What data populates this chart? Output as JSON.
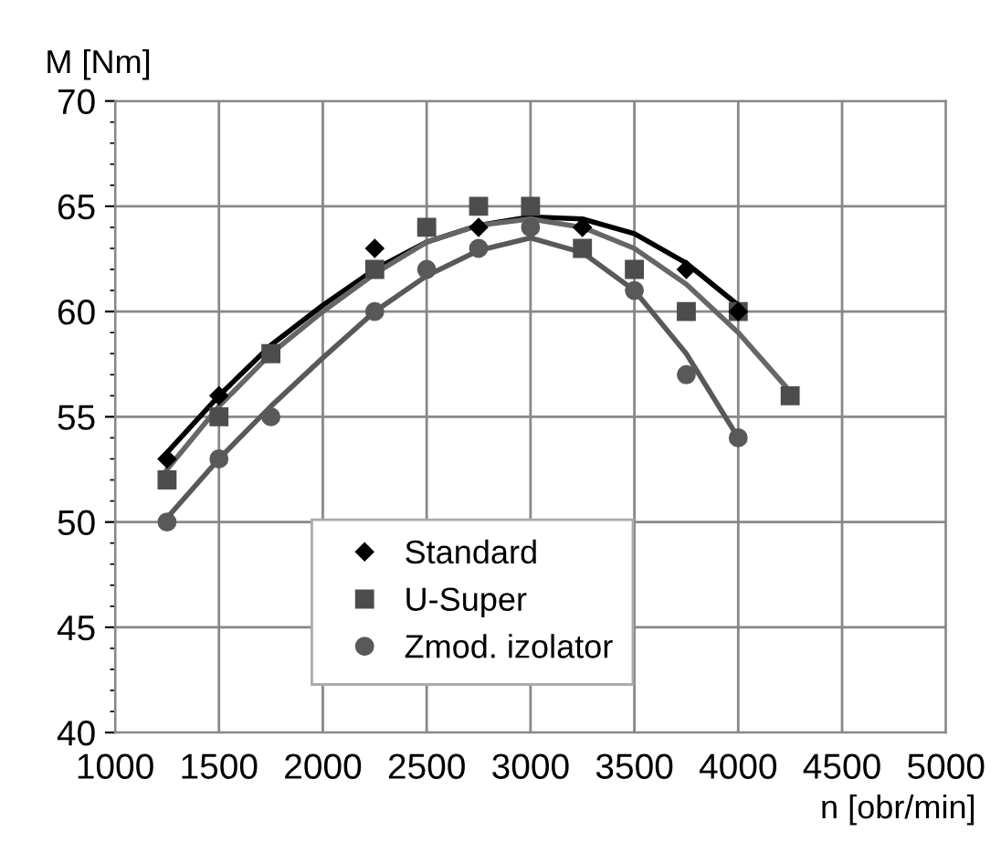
{
  "chart_data": {
    "type": "scatter",
    "xlabel": "n [obr/min]",
    "ylabel": "M [Nm]",
    "xlim": [
      1000,
      5000
    ],
    "xticks": [
      1000,
      1500,
      2000,
      2500,
      3000,
      3500,
      4000,
      4500,
      5000
    ],
    "ylim": [
      40,
      70
    ],
    "yticks": [
      40,
      45,
      50,
      55,
      60,
      65,
      70
    ],
    "grid": true,
    "legend": "bottom",
    "series": [
      {
        "name": "Standard",
        "color": "#000000",
        "marker": "diamond",
        "x": [
          1250,
          1500,
          2250,
          2750,
          3250,
          3750,
          4000
        ],
        "values": [
          53,
          56,
          63,
          64,
          64,
          62,
          60
        ]
      },
      {
        "name": "U-Super",
        "color": "#4d4d4d",
        "marker": "square",
        "x": [
          1250,
          1500,
          1750,
          2250,
          2500,
          2750,
          3000,
          3250,
          3500,
          3750,
          4000,
          4250
        ],
        "values": [
          52,
          55,
          58,
          62,
          64,
          65,
          65,
          63,
          62,
          60,
          60,
          56
        ]
      },
      {
        "name": "Zmod. izolator",
        "color": "#595959",
        "marker": "circle",
        "x": [
          1250,
          1500,
          1750,
          2250,
          2500,
          2750,
          3000,
          3500,
          3750,
          4000
        ],
        "values": [
          50,
          53,
          55,
          60,
          62,
          63,
          64,
          61,
          57,
          54
        ]
      },
      {
        "type": "line",
        "color": "#000000",
        "x": [
          1250,
          1500,
          1750,
          2000,
          2250,
          2500,
          2750,
          3000,
          3250,
          3500,
          3750,
          4000
        ],
        "values": [
          53.3,
          56,
          58.4,
          60.3,
          62,
          63.3,
          64.1,
          64.5,
          64.4,
          63.7,
          62.3,
          60.3
        ]
      },
      {
        "type": "line",
        "color": "#666666",
        "x": [
          1250,
          1500,
          1750,
          2000,
          2250,
          2500,
          2750,
          3000,
          3250,
          3500,
          3750,
          4000,
          4250
        ],
        "values": [
          52.5,
          55.5,
          58,
          60,
          61.8,
          63.3,
          64.1,
          64.4,
          64,
          63,
          61.3,
          59,
          56.2
        ]
      },
      {
        "type": "line",
        "color": "#595959",
        "x": [
          1250,
          1500,
          1750,
          2000,
          2250,
          2500,
          2750,
          3000,
          3250,
          3500,
          3750,
          4000
        ],
        "values": [
          50.2,
          53,
          55.5,
          57.8,
          60,
          61.7,
          62.9,
          63.5,
          62.8,
          61,
          58,
          54
        ]
      }
    ]
  }
}
